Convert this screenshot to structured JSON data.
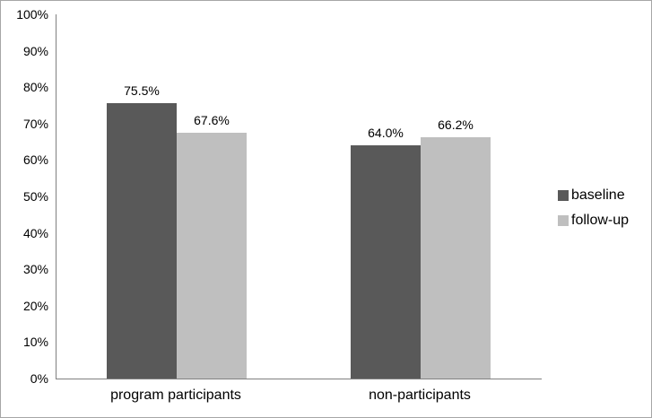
{
  "chart_data": {
    "type": "bar",
    "title": "",
    "xlabel": "",
    "ylabel": "",
    "categories": [
      "program participants",
      "non-participants"
    ],
    "series": [
      {
        "name": "baseline",
        "color": "#595959",
        "values": [
          75.5,
          64.0
        ],
        "labels": [
          "75.5%",
          "64.0%"
        ]
      },
      {
        "name": "follow-up",
        "color": "#BFBFBF",
        "values": [
          67.6,
          66.2
        ],
        "labels": [
          "67.6%",
          "66.2%"
        ]
      }
    ],
    "y_ticks": [
      "0%",
      "10%",
      "20%",
      "30%",
      "40%",
      "50%",
      "60%",
      "70%",
      "80%",
      "90%",
      "100%"
    ],
    "ylim": [
      0,
      100
    ],
    "grid": false,
    "legend_position": "right"
  },
  "colors": {
    "axis": "#808080",
    "frame_border": "#A6A6A6",
    "text": "#000000",
    "background": "#FFFFFF"
  }
}
